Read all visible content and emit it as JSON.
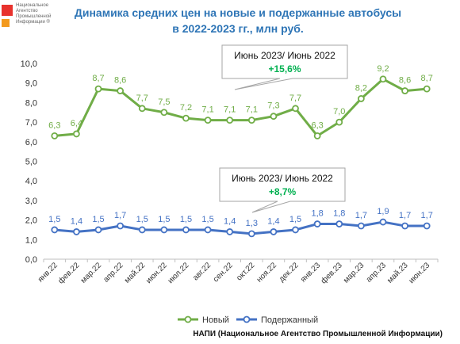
{
  "logo": {
    "text": "Национальное Агентство Промышленной Информации ®"
  },
  "header": {
    "title_line1": "Динамика средних цен на новые и подержанные автобусы",
    "title_line2": "в 2022-2023 гг., млн руб."
  },
  "footer": {
    "source": "НАПИ (Национальное Агентство Промышленной Информации)"
  },
  "colors": {
    "new_series": "#70ad47",
    "used_series": "#4472c4",
    "title": "#2e75b6",
    "highlight": "#00b050"
  },
  "callouts": [
    {
      "series": "Новый",
      "label": "Июнь 2023/ Июнь 2022",
      "value": "+15,6%"
    },
    {
      "series": "Подержанный",
      "label": "Июнь 2023/ Июнь 2022",
      "value": "+8,7%"
    }
  ],
  "chart_data": {
    "type": "line",
    "title": "Динамика средних цен на новые и подержанные автобусы в 2022-2023 гг., млн руб.",
    "categories": [
      "янв.22",
      "фев.22",
      "мар.22",
      "апр.22",
      "май.22",
      "июн.22",
      "июл.22",
      "авг.22",
      "сен.22",
      "окт.22",
      "ноя.22",
      "дек.22",
      "янв.23",
      "фев.23",
      "мар.23",
      "апр.23",
      "май.23",
      "июн.23"
    ],
    "y_ticks": [
      "0,0",
      "1,0",
      "2,0",
      "3,0",
      "4,0",
      "5,0",
      "6,0",
      "7,0",
      "8,0",
      "9,0",
      "10,0"
    ],
    "ylim": [
      0,
      10
    ],
    "grid": false,
    "legend_position": "bottom",
    "series": [
      {
        "name": "Новый",
        "color": "#70ad47",
        "values": [
          6.3,
          6.4,
          8.7,
          8.6,
          7.7,
          7.5,
          7.2,
          7.1,
          7.1,
          7.1,
          7.3,
          7.7,
          6.3,
          7.0,
          8.2,
          9.2,
          8.6,
          8.7
        ],
        "labels": [
          "6,3",
          "6,4",
          "8,7",
          "8,6",
          "7,7",
          "7,5",
          "7,2",
          "7,1",
          "7,1",
          "7,1",
          "7,3",
          "7,7",
          "6,3",
          "7,0",
          "8,2",
          "9,2",
          "8,6",
          "8,7"
        ]
      },
      {
        "name": "Подержанный",
        "color": "#4472c4",
        "values": [
          1.5,
          1.4,
          1.5,
          1.7,
          1.5,
          1.5,
          1.5,
          1.5,
          1.4,
          1.3,
          1.4,
          1.5,
          1.8,
          1.8,
          1.7,
          1.9,
          1.7,
          1.7
        ],
        "labels": [
          "1,5",
          "1,4",
          "1,5",
          "1,7",
          "1,5",
          "1,5",
          "1,5",
          "1,5",
          "1,4",
          "1,3",
          "1,4",
          "1,5",
          "1,8",
          "1,8",
          "1,7",
          "1,9",
          "1,7",
          "1,7"
        ]
      }
    ]
  }
}
